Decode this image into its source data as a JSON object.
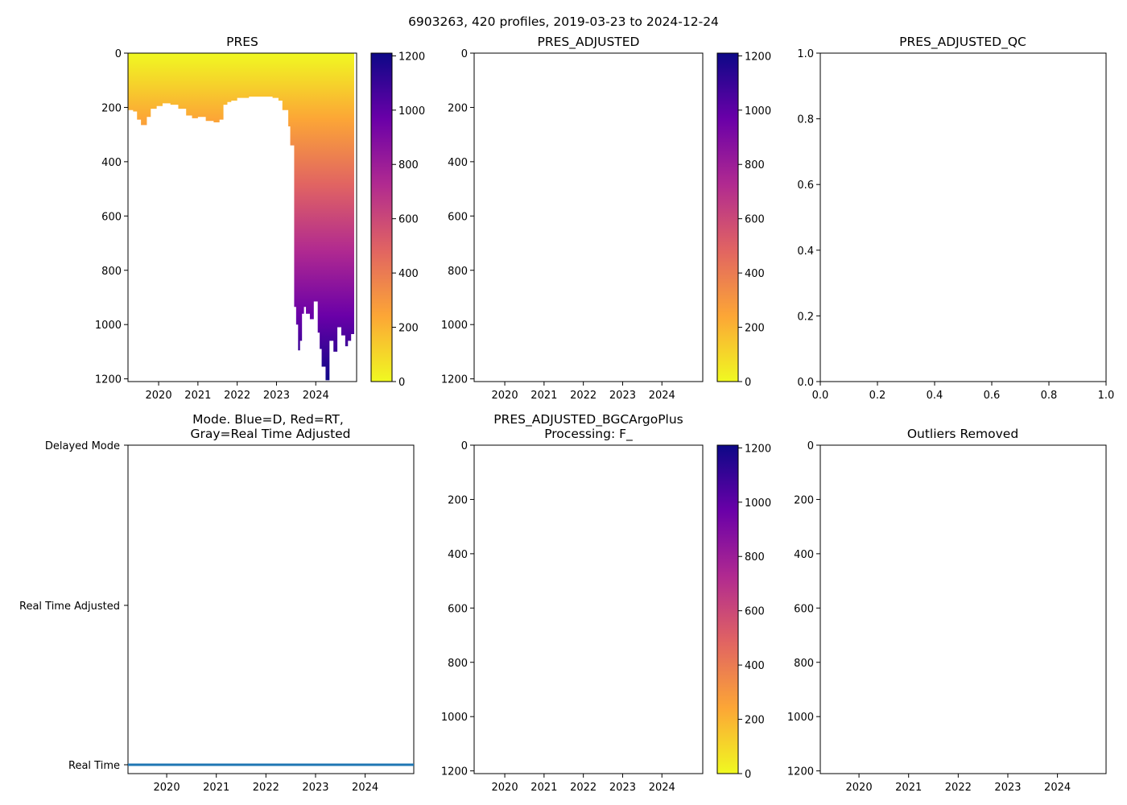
{
  "suptitle": "6903263, 420 profiles, 2019-03-23 to 2024-12-24",
  "colors": {
    "mode_line": "#1f77b4",
    "colormap": [
      "#f0f921",
      "#fca636",
      "#e16462",
      "#b12a90",
      "#6a00a8",
      "#0d0887"
    ]
  },
  "chart_data": [
    {
      "id": "pres",
      "type": "heatmap",
      "title": "PRES",
      "colormap": "plasma_r",
      "clim": [
        0,
        1210
      ],
      "ylim": [
        1210,
        0
      ],
      "xlim": [
        2019.22,
        2024.98
      ],
      "x_ticks": [
        "2020",
        "2021",
        "2022",
        "2023",
        "2024"
      ],
      "y_ticks": [
        "0",
        "200",
        "400",
        "600",
        "800",
        "1000",
        "1200"
      ],
      "colorbar_ticks": [
        "0",
        "200",
        "400",
        "600",
        "800",
        "1000",
        "1200"
      ],
      "profile_max_pressure": {
        "x": [
          2019.22,
          2019.35,
          2019.45,
          2019.55,
          2019.62,
          2019.7,
          2019.8,
          2019.95,
          2020.1,
          2020.3,
          2020.5,
          2020.7,
          2020.85,
          2021.0,
          2021.2,
          2021.4,
          2021.55,
          2021.65,
          2021.75,
          2021.85,
          2022.0,
          2022.3,
          2022.6,
          2022.9,
          2023.05,
          2023.15,
          2023.3,
          2023.35,
          2023.45,
          2023.5,
          2023.55,
          2023.6,
          2023.65,
          2023.7,
          2023.75,
          2023.85,
          2023.95,
          2024.05,
          2024.1,
          2024.15,
          2024.25,
          2024.35,
          2024.45,
          2024.55,
          2024.65,
          2024.75,
          2024.82,
          2024.9,
          2024.98
        ],
        "values": [
          210,
          215,
          245,
          265,
          265,
          235,
          205,
          195,
          185,
          190,
          205,
          230,
          240,
          235,
          250,
          255,
          245,
          190,
          180,
          175,
          165,
          160,
          160,
          165,
          175,
          210,
          270,
          340,
          935,
          1000,
          1095,
          1060,
          960,
          935,
          960,
          980,
          915,
          1030,
          1090,
          1155,
          1205,
          1060,
          1100,
          1010,
          1040,
          1080,
          1060,
          1035,
          1030
        ]
      }
    },
    {
      "id": "pres_adjusted",
      "type": "heatmap",
      "title": "PRES_ADJUSTED",
      "colormap": "plasma_r",
      "clim": [
        0,
        1210
      ],
      "ylim": [
        1210,
        0
      ],
      "x_ticks": [
        "2020",
        "2021",
        "2022",
        "2023",
        "2024"
      ],
      "y_ticks": [
        "0",
        "200",
        "400",
        "600",
        "800",
        "1000",
        "1200"
      ],
      "colorbar_ticks": [
        "0",
        "200",
        "400",
        "600",
        "800",
        "1000",
        "1200"
      ],
      "values": []
    },
    {
      "id": "pres_adjusted_qc",
      "type": "scatter",
      "title": "PRES_ADJUSTED_QC",
      "xlim": [
        0,
        1
      ],
      "ylim": [
        0,
        1
      ],
      "x_ticks": [
        "0.0",
        "0.2",
        "0.4",
        "0.6",
        "0.8",
        "1.0"
      ],
      "y_ticks": [
        "0.0",
        "0.2",
        "0.4",
        "0.6",
        "0.8",
        "1.0"
      ],
      "values": []
    },
    {
      "id": "mode",
      "type": "line",
      "title_line1": "Mode. Blue=D, Red=RT,",
      "title_line2": "Gray=Real Time Adjusted",
      "x_ticks": [
        "2020",
        "2021",
        "2022",
        "2023",
        "2024"
      ],
      "y_categories": [
        "Delayed Mode",
        "Real Time Adjusted",
        "Real Time"
      ],
      "series": [
        {
          "name": "Real Time",
          "x": [
            2019.22,
            2024.98
          ],
          "level": "Real Time"
        }
      ]
    },
    {
      "id": "bgc",
      "type": "heatmap",
      "title_line1": "PRES_ADJUSTED_BGCArgoPlus",
      "title_line2": "Processing: F_",
      "colormap": "plasma_r",
      "clim": [
        0,
        1210
      ],
      "ylim": [
        1210,
        0
      ],
      "x_ticks": [
        "2020",
        "2021",
        "2022",
        "2023",
        "2024"
      ],
      "y_ticks": [
        "0",
        "200",
        "400",
        "600",
        "800",
        "1000",
        "1200"
      ],
      "colorbar_ticks": [
        "0",
        "200",
        "400",
        "600",
        "800",
        "1000",
        "1200"
      ],
      "values": []
    },
    {
      "id": "outliers",
      "type": "scatter",
      "title": "Outliers Removed",
      "ylim": [
        1210,
        0
      ],
      "x_ticks": [
        "2020",
        "2021",
        "2022",
        "2023",
        "2024"
      ],
      "y_ticks": [
        "0",
        "200",
        "400",
        "600",
        "800",
        "1000",
        "1200"
      ],
      "values": []
    }
  ]
}
